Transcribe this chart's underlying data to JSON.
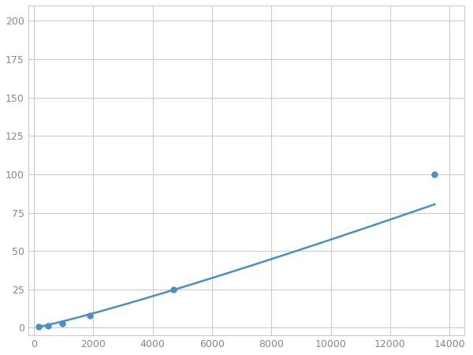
{
  "x_data": [
    156,
    469,
    938,
    1875,
    4688,
    13500
  ],
  "y_data": [
    0.8,
    1.5,
    3.0,
    8.0,
    25,
    100
  ],
  "line_color": "#4a90c4",
  "marker_color": "#4a90c4",
  "marker_size": 6,
  "xlim": [
    -200,
    14500
  ],
  "ylim": [
    -5,
    210
  ],
  "xticks": [
    0,
    2000,
    4000,
    6000,
    8000,
    10000,
    12000,
    14000
  ],
  "yticks": [
    0,
    25,
    50,
    75,
    100,
    125,
    150,
    175,
    200
  ],
  "grid_color": "#cccccc",
  "background_color": "#ffffff",
  "spine_color": "#cccccc",
  "tick_color": "#888888",
  "tick_labelsize": 9,
  "linewidth": 1.8
}
